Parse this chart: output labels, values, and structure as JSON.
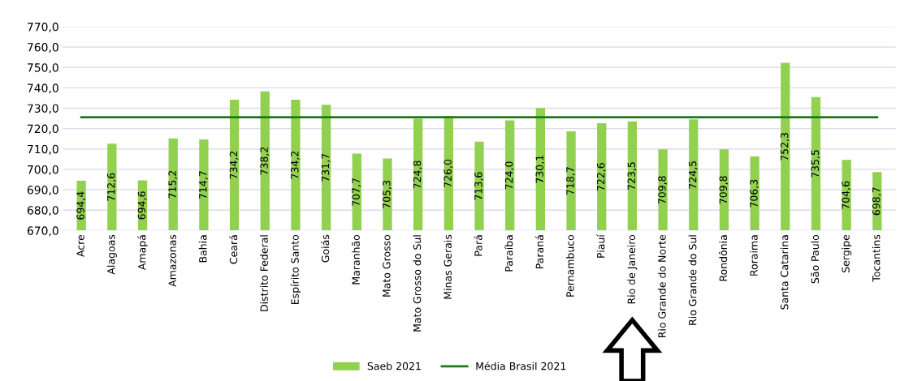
{
  "chart_data": {
    "type": "bar",
    "categories": [
      "Acre",
      "Alagoas",
      "Amapá",
      "Amazonas",
      "Bahia",
      "Ceará",
      "Distrito Federal",
      "Espírito Santo",
      "Goiás",
      "Maranhão",
      "Mato Grosso",
      "Mato Grosso do Sul",
      "Minas Gerais",
      "Pará",
      "Paraíba",
      "Paraná",
      "Pernambuco",
      "Piauí",
      "Rio de Janeiro",
      "Rio Grande do Norte",
      "Rio Grande do Sul",
      "Rondônia",
      "Roraima",
      "Santa Catarina",
      "São Paulo",
      "Sergipe",
      "Tocantins"
    ],
    "series": [
      {
        "name": "Saeb 2021",
        "color": "#92d050",
        "values": [
          694.4,
          712.6,
          694.6,
          715.2,
          714.7,
          734.2,
          738.2,
          734.2,
          731.7,
          707.7,
          705.3,
          724.8,
          726.0,
          713.6,
          724.0,
          730.1,
          718.7,
          722.6,
          723.5,
          709.8,
          724.5,
          709.8,
          706.3,
          752.3,
          735.5,
          704.6,
          698.7
        ],
        "value_labels": [
          "694,4",
          "712,6",
          "694,6",
          "715,2",
          "714,7",
          "734,2",
          "738,2",
          "734,2",
          "731,7",
          "707,7",
          "705,3",
          "724,8",
          "726,0",
          "713,6",
          "724,0",
          "730,1",
          "718,7",
          "722,6",
          "723,5",
          "709,8",
          "724,5",
          "709,8",
          "706,3",
          "752,3",
          "735,5",
          "704,6",
          "698,7"
        ]
      },
      {
        "name": "Média Brasil 2021",
        "type": "line",
        "color": "#1a7a1a",
        "values": [
          725.6,
          725.6,
          725.6,
          725.6,
          725.6,
          725.6,
          725.6,
          725.6,
          725.6,
          725.6,
          725.6,
          725.6,
          725.6,
          725.6,
          725.6,
          725.6,
          725.6,
          725.6,
          725.6,
          725.6,
          725.6,
          725.6,
          725.6,
          725.6,
          725.6,
          725.6,
          725.6
        ]
      }
    ],
    "ylim": [
      670,
      770
    ],
    "yticks": [
      {
        "value": 670,
        "label": "670,0"
      },
      {
        "value": 680,
        "label": "680,0"
      },
      {
        "value": 690,
        "label": "690,0"
      },
      {
        "value": 700,
        "label": "700,0"
      },
      {
        "value": 710,
        "label": "710,0"
      },
      {
        "value": 720,
        "label": "720,0"
      },
      {
        "value": 730,
        "label": "730,0"
      },
      {
        "value": 740,
        "label": "740,0"
      },
      {
        "value": 750,
        "label": "750,0"
      },
      {
        "value": 760,
        "label": "760,0"
      },
      {
        "value": 770,
        "label": "770,0"
      }
    ],
    "grid": "y",
    "legend": "bottom",
    "marker": "none",
    "line_style": "solid"
  }
}
